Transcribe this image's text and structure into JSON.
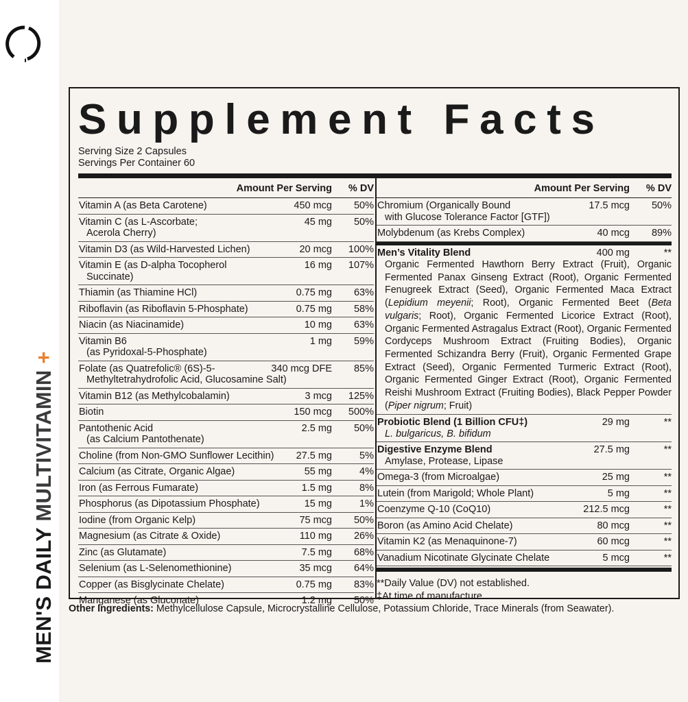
{
  "brand": {
    "logo": "ring-logo",
    "vertical_label": {
      "part1": "MEN'S DAILY ",
      "part2": "MULTIVITAMIN",
      "plus": "+"
    },
    "accent": "#e9802e"
  },
  "title": "Supplement Facts",
  "serving_size": "Serving Size 2 Capsules",
  "servings_per_container": "Servings Per Container 60",
  "headers": {
    "amount": "Amount Per Serving",
    "dv": "% DV"
  },
  "left_rows": [
    {
      "name": "Vitamin A (as Beta Carotene)",
      "amount": "450 mcg",
      "dv": "50%"
    },
    {
      "name": "Vitamin C (as L-Ascorbate;",
      "name2": "Acerola Cherry)",
      "amount": "45 mg",
      "dv": "50%"
    },
    {
      "name": "Vitamin D3 (as Wild-Harvested Lichen)",
      "amount": "20 mcg",
      "dv": "100%"
    },
    {
      "name": "Vitamin E (as D-alpha Tocopherol",
      "name2": "Succinate)",
      "amount": "16 mg",
      "dv": "107%"
    },
    {
      "name": "Thiamin (as Thiamine HCl)",
      "amount": "0.75 mg",
      "dv": "63%"
    },
    {
      "name": "Riboflavin (as Riboflavin 5-Phosphate)",
      "amount": "0.75 mg",
      "dv": "58%"
    },
    {
      "name": "Niacin (as Niacinamide)",
      "amount": "10 mg",
      "dv": "63%"
    },
    {
      "name": "Vitamin B6",
      "name2": "(as Pyridoxal-5-Phosphate)",
      "amount": "1 mg",
      "dv": "59%"
    },
    {
      "name": "Folate (as Quatrefolic® (6S)-5-",
      "name2": "Methyltetrahydrofolic Acid, Glucosamine Salt)",
      "amount": "340 mcg DFE",
      "dv": "85%"
    },
    {
      "name": "Vitamin B12 (as Methylcobalamin)",
      "amount": "3 mcg",
      "dv": "125%"
    },
    {
      "name": "Biotin",
      "amount": "150 mcg",
      "dv": "500%"
    },
    {
      "name": "Pantothenic Acid",
      "name2": "(as Calcium Pantothenate)",
      "amount": "2.5 mg",
      "dv": "50%"
    },
    {
      "name": "Choline (from Non-GMO Sunflower Lecithin)",
      "amount": "27.5 mg",
      "dv": "5%"
    },
    {
      "name": "Calcium (as Citrate, Organic Algae)",
      "amount": "55 mg",
      "dv": "4%"
    },
    {
      "name": "Iron (as Ferrous Fumarate)",
      "amount": "1.5 mg",
      "dv": "8%"
    },
    {
      "name": "Phosphorus (as Dipotassium Phosphate)",
      "amount": "15 mg",
      "dv": "1%"
    },
    {
      "name": "Iodine (from Organic Kelp)",
      "amount": "75 mcg",
      "dv": "50%"
    },
    {
      "name": "Magnesium (as Citrate & Oxide)",
      "amount": "110 mg",
      "dv": "26%"
    },
    {
      "name": "Zinc (as Glutamate)",
      "amount": "7.5 mg",
      "dv": "68%"
    },
    {
      "name": "Selenium (as L-Selenomethionine)",
      "amount": "35 mcg",
      "dv": "64%"
    },
    {
      "name": "Copper (as Bisglycinate Chelate)",
      "amount": "0.75 mg",
      "dv": "83%"
    },
    {
      "name": "Manganese (as Gluconate)",
      "amount": "1.2 mg",
      "dv": "50%"
    }
  ],
  "right_rows": [
    {
      "name": "Chromium (Organically Bound",
      "name2": "with Glucose Tolerance Factor [GTF])",
      "amount": "17.5 mcg",
      "dv": "50%"
    },
    {
      "name": "Molybdenum (as Krebs Complex)",
      "amount": "40 mcg",
      "dv": "89%"
    },
    {
      "name": "Men’s Vitality Blend",
      "bold": true,
      "thick": true,
      "amount": "400 mg",
      "dv": "**",
      "blend": [
        {
          "t": "Organic Fermented Hawthorn Berry Extract (Fruit), Organic Fermented Panax Ginseng Extract (Root), Organic Fermented Fenugreek Extract (Seed), Organic Fermented Maca Extract ("
        },
        {
          "t": "Lepidium meyenii",
          "i": true
        },
        {
          "t": "; Root), Organic Fermented Beet ("
        },
        {
          "t": "Beta vulgaris",
          "i": true
        },
        {
          "t": "; Root), Organic Fermented Licorice Extract (Root), Organic Fermented Astragalus Extract (Root), Organic Fermented Cordyceps Mushroom Extract (Fruiting Bodies), Organic Fermented Schizandra Berry (Fruit), Organic Fermented Grape Extract (Seed), Organic Fermented Turmeric Extract (Root), Organic Fermented Ginger Extract (Root), Organic Fermented Reishi Mushroom Extract (Fruiting Bodies), Black Pepper Powder ("
        },
        {
          "t": "Piper nigrum",
          "i": true
        },
        {
          "t": "; Fruit)"
        }
      ]
    },
    {
      "name": "Probiotic Blend (1 Billion CFU‡)",
      "bold": true,
      "name2": "L. bulgaricus, B. bifidum",
      "italic2": true,
      "amount": "29 mg",
      "dv": "**"
    },
    {
      "name": "Digestive Enzyme Blend",
      "bold": true,
      "name2": "Amylase, Protease, Lipase",
      "amount": "27.5 mg",
      "dv": "**"
    },
    {
      "name": "Omega-3 (from Microalgae)",
      "amount": "25 mg",
      "dv": "**"
    },
    {
      "name": "Lutein (from Marigold; Whole Plant)",
      "amount": "5 mg",
      "dv": "**"
    },
    {
      "name": "Coenzyme Q-10 (CoQ10)",
      "amount": "212.5 mcg",
      "dv": "**"
    },
    {
      "name": "Boron (as Amino Acid Chelate)",
      "amount": "80 mcg",
      "dv": "**"
    },
    {
      "name": "Vitamin K2 (as Menaquinone-7)",
      "amount": "60 mcg",
      "dv": "**"
    },
    {
      "name": "Vanadium Nicotinate Glycinate Chelate",
      "amount": "5 mcg",
      "dv": "**"
    }
  ],
  "footnotes": [
    "**Daily Value (DV) not established.",
    "‡At time of manufacture."
  ],
  "other_ingredients": {
    "label": "Other Ingredients:",
    "text": " Methylcellulose Capsule, Microcrystalline Cellulose, Potassium Chloride, Trace Minerals (from Seawater)."
  }
}
